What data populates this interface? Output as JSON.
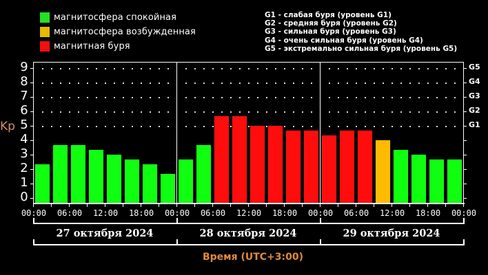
{
  "legend": {
    "items": [
      {
        "label": "магнитосфера спокойная",
        "color": "#22e322"
      },
      {
        "label": "магнитосфера возбужденная",
        "color": "#e6b800"
      },
      {
        "label": "магнитная буря",
        "color": "#f01010"
      }
    ]
  },
  "g_levels": [
    "G1 - слабая буря (уровень G1)",
    "G2 - средняя буря (уровень G2)",
    "G3 - сильная буря (уровень G3)",
    "G4 - очень сильная буря (уровень G4)",
    "G5 - экстремально сильная буря (уровень G5)"
  ],
  "axes": {
    "y_label": "Kp",
    "y_ticks": [
      "0",
      "1",
      "2",
      "3",
      "4",
      "5",
      "6",
      "7",
      "8",
      "9"
    ],
    "g_ticks": [
      "G1",
      "G2",
      "G3",
      "G4",
      "G5"
    ],
    "x_ticks": [
      "00:00",
      "06:00",
      "12:00",
      "18:00",
      "00:00",
      "06:00",
      "12:00",
      "18:00",
      "00:00",
      "06:00",
      "12:00",
      "18:00",
      "00:00"
    ],
    "dates": [
      "27 октября 2024",
      "28 октября 2024",
      "29 октября 2024"
    ],
    "x_title": "Время (UTC+3:00)"
  },
  "colors": {
    "quiet": "#10ff10",
    "active": "#ffbb00",
    "storm": "#ff0d0d",
    "kp_label": "#d4906a",
    "x_title": "#e08a3c"
  },
  "chart_data": {
    "type": "bar",
    "title": "",
    "xlabel": "Время (UTC+3:00)",
    "ylabel": "Kp",
    "ylim": [
      0,
      9
    ],
    "secondary_y_labels": {
      "5": "G1",
      "6": "G2",
      "7": "G3",
      "8": "G4",
      "9": "G5"
    },
    "grid": "dotted, y=5..9",
    "legend_position": "top-left",
    "legend": [
      "магнитосфера спокойная",
      "магнитосфера возбужденная",
      "магнитная буря"
    ],
    "categories": [
      "27.10 00-03",
      "27.10 03-06",
      "27.10 06-09",
      "27.10 09-12",
      "27.10 12-15",
      "27.10 15-18",
      "27.10 18-21",
      "27.10 21-24",
      "28.10 00-03",
      "28.10 03-06",
      "28.10 06-09",
      "28.10 09-12",
      "28.10 12-15",
      "28.10 15-18",
      "28.10 18-21",
      "28.10 21-24",
      "29.10 00-03",
      "29.10 03-06",
      "29.10 06-09",
      "29.10 09-12",
      "29.10 12-15",
      "29.10 15-18",
      "29.10 18-21",
      "29.10 21-24"
    ],
    "values": [
      2.33,
      3.67,
      3.67,
      3.33,
      3.0,
      2.67,
      2.33,
      1.67,
      2.67,
      3.67,
      5.67,
      5.67,
      5.0,
      5.0,
      4.67,
      4.67,
      4.33,
      4.67,
      4.67,
      4.0,
      3.33,
      3.0,
      2.67,
      2.67
    ],
    "status": [
      "quiet",
      "quiet",
      "quiet",
      "quiet",
      "quiet",
      "quiet",
      "quiet",
      "quiet",
      "quiet",
      "quiet",
      "storm",
      "storm",
      "storm",
      "storm",
      "storm",
      "storm",
      "storm",
      "storm",
      "storm",
      "active",
      "quiet",
      "quiet",
      "quiet",
      "quiet"
    ]
  }
}
